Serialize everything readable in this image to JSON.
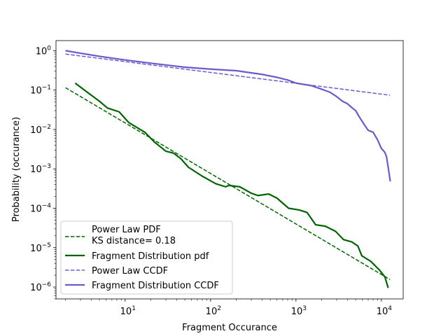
{
  "chart_data": {
    "type": "line",
    "xscale": "log",
    "yscale": "log",
    "xlim": [
      1.55,
      18000
    ],
    "ylim": [
      5e-07,
      1.8
    ],
    "xlabel": "Fragment Occurance",
    "ylabel": "Probability (occurance)",
    "title": "",
    "legend_position": "lower-left",
    "x_ticks": [
      {
        "value": 10,
        "base": "10",
        "exp": "1"
      },
      {
        "value": 100,
        "base": "10",
        "exp": "2"
      },
      {
        "value": 1000,
        "base": "10",
        "exp": "3"
      },
      {
        "value": 10000,
        "base": "10",
        "exp": "4"
      }
    ],
    "y_ticks": [
      {
        "value": 1e-06,
        "base": "10",
        "exp": "−6"
      },
      {
        "value": 1e-05,
        "base": "10",
        "exp": "−5"
      },
      {
        "value": 0.0001,
        "base": "10",
        "exp": "−4"
      },
      {
        "value": 0.001,
        "base": "10",
        "exp": "−3"
      },
      {
        "value": 0.01,
        "base": "10",
        "exp": "−2"
      },
      {
        "value": 0.1,
        "base": "10",
        "exp": "−1"
      },
      {
        "value": 1,
        "base": "10",
        "exp": "0"
      }
    ],
    "series": [
      {
        "name": "Power Law PDF",
        "name_line2": "KS distance= 0.18",
        "color": "#006400",
        "style": "dashed",
        "points": [
          [
            2.0,
            0.115
          ],
          [
            12600,
            1.55e-06
          ]
        ]
      },
      {
        "name": "Fragment Distribution pdf",
        "color": "#006400",
        "style": "solid",
        "points": [
          [
            2.6,
            0.15
          ],
          [
            3.6,
            0.088
          ],
          [
            5.0,
            0.052
          ],
          [
            6.2,
            0.035
          ],
          [
            8.5,
            0.028
          ],
          [
            11.0,
            0.015
          ],
          [
            17.0,
            0.0085
          ],
          [
            22.0,
            0.0048
          ],
          [
            30.0,
            0.0028
          ],
          [
            37.0,
            0.0025
          ],
          [
            45.0,
            0.0018
          ],
          [
            55.0,
            0.0011
          ],
          [
            80.0,
            0.00065
          ],
          [
            115.0,
            0.00042
          ],
          [
            150.0,
            0.00035
          ],
          [
            165.0,
            0.00038
          ],
          [
            220.0,
            0.00035
          ],
          [
            300.0,
            0.00024
          ],
          [
            360.0,
            0.00021
          ],
          [
            480.0,
            0.00023
          ],
          [
            600.0,
            0.00018
          ],
          [
            820.0,
            0.0001
          ],
          [
            1100.0,
            9e-05
          ],
          [
            1350.0,
            7.8e-05
          ],
          [
            1700.0,
            3.8e-05
          ],
          [
            2200.0,
            3.5e-05
          ],
          [
            2900.0,
            2.6e-05
          ],
          [
            3600.0,
            1.6e-05
          ],
          [
            4500.0,
            1.4e-05
          ],
          [
            5300.0,
            1.1e-05
          ],
          [
            5900.0,
            6.2e-06
          ],
          [
            7500.0,
            4.5e-06
          ],
          [
            9500.0,
            2.7e-06
          ],
          [
            11000.0,
            1.8e-06
          ],
          [
            12000.0,
            9.5e-07
          ]
        ]
      },
      {
        "name": "Power Law CCDF",
        "color": "#6a5acd",
        "style": "dashed",
        "points": [
          [
            2.0,
            0.82
          ],
          [
            12600,
            0.074
          ]
        ]
      },
      {
        "name": "Fragment Distribution CCDF",
        "color": "#6a5acd",
        "style": "solid",
        "points": [
          [
            2.0,
            1.0
          ],
          [
            3.0,
            0.86
          ],
          [
            5.0,
            0.72
          ],
          [
            10.0,
            0.58
          ],
          [
            20.0,
            0.48
          ],
          [
            50.0,
            0.38
          ],
          [
            100.0,
            0.34
          ],
          [
            200.0,
            0.31
          ],
          [
            400.0,
            0.25
          ],
          [
            600.0,
            0.21
          ],
          [
            800.0,
            0.18
          ],
          [
            1000.0,
            0.15
          ],
          [
            1500.0,
            0.13
          ],
          [
            2000.0,
            0.105
          ],
          [
            2500.0,
            0.088
          ],
          [
            3000.0,
            0.068
          ],
          [
            3500.0,
            0.052
          ],
          [
            4000.0,
            0.045
          ],
          [
            4500.0,
            0.036
          ],
          [
            5000.0,
            0.03
          ],
          [
            5500.0,
            0.021
          ],
          [
            6500.0,
            0.012
          ],
          [
            7000.0,
            0.0095
          ],
          [
            8000.0,
            0.0085
          ],
          [
            9000.0,
            0.0055
          ],
          [
            10000.0,
            0.0033
          ],
          [
            11000.0,
            0.0026
          ],
          [
            11500.0,
            0.002
          ],
          [
            12000.0,
            0.0011
          ],
          [
            12700.0,
            0.00048
          ]
        ]
      }
    ]
  }
}
